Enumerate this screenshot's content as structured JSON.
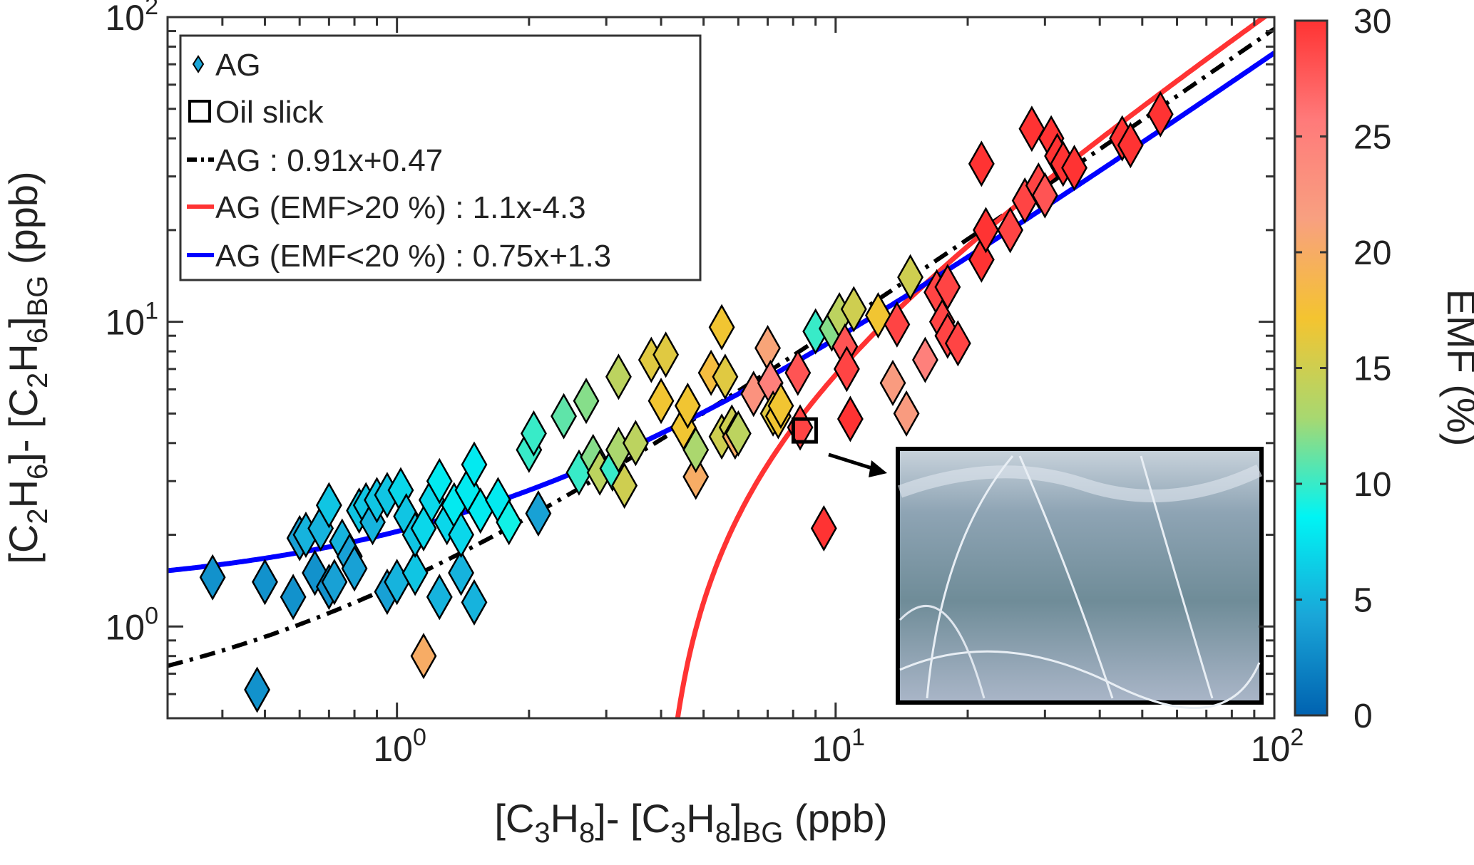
{
  "chart_data": {
    "type": "scatter",
    "xscale": "log",
    "yscale": "log",
    "xlim": [
      0.3,
      100
    ],
    "ylim": [
      0.5,
      100
    ],
    "grid": false,
    "xlabel_parts": [
      {
        "t": "[C"
      },
      {
        "t": "3",
        "s": "sub"
      },
      {
        "t": "H"
      },
      {
        "t": "8",
        "s": "sub"
      },
      {
        "t": "]- [C"
      },
      {
        "t": "3",
        "s": "sub"
      },
      {
        "t": "H"
      },
      {
        "t": "8",
        "s": "sub"
      },
      {
        "t": "]"
      },
      {
        "t": "BG",
        "s": "sub"
      },
      {
        "t": " (ppb)"
      }
    ],
    "ylabel_parts": [
      {
        "t": "[C"
      },
      {
        "t": "2",
        "s": "sub"
      },
      {
        "t": "H"
      },
      {
        "t": "6",
        "s": "sub"
      },
      {
        "t": "]- [C"
      },
      {
        "t": "2",
        "s": "sub"
      },
      {
        "t": "H"
      },
      {
        "t": "6",
        "s": "sub"
      },
      {
        "t": "]"
      },
      {
        "t": "BG",
        "s": "sub"
      },
      {
        "t": " (ppb)"
      }
    ],
    "xticks": [
      {
        "v": 1,
        "base": "10",
        "exp": "0"
      },
      {
        "v": 10,
        "base": "10",
        "exp": "1"
      },
      {
        "v": 100,
        "base": "10",
        "exp": "2"
      }
    ],
    "yticks": [
      {
        "v": 1,
        "base": "10",
        "exp": "0"
      },
      {
        "v": 10,
        "base": "10",
        "exp": "1"
      },
      {
        "v": 100,
        "base": "10",
        "exp": "2"
      }
    ],
    "legend": {
      "placement": "top-left",
      "entries": [
        {
          "label": "AG",
          "marker": "diamond"
        },
        {
          "label": "Oil slick",
          "marker": "square"
        },
        {
          "label": "AG : 0.91x+0.47",
          "line": "dash-dot",
          "color": "#000000"
        },
        {
          "label": "AG (EMF>20 %) : 1.1x-4.3",
          "line": "solid",
          "color": "#ff3333"
        },
        {
          "label": "AG (EMF<20 %) : 0.75x+1.3",
          "line": "solid",
          "color": "#0000ff"
        }
      ]
    },
    "fits": [
      {
        "name": "AG : 0.91x+0.47",
        "slope": 0.91,
        "intercept": 0.47,
        "color": "#000000",
        "style": "dash-dot"
      },
      {
        "name": "AG (EMF>20 %) : 1.1x-4.3",
        "slope": 1.1,
        "intercept": -4.3,
        "color": "#ff3333",
        "style": "solid"
      },
      {
        "name": "AG (EMF<20 %) : 0.75x+1.3",
        "slope": 0.75,
        "intercept": 1.3,
        "color": "#0000ff",
        "style": "solid"
      }
    ],
    "oil_slick": {
      "x": 8.5,
      "y": 4.4
    },
    "colorbar": {
      "label": "EMF (%)",
      "range": [
        0,
        30
      ],
      "ticks": [
        "0",
        "5",
        "10",
        "15",
        "20",
        "25",
        "30"
      ],
      "colors": [
        "#0062b0",
        "#1aa6d8",
        "#00f4f4",
        "#a8d870",
        "#f4c430",
        "#f8a080",
        "#ff7a7a",
        "#ff3333"
      ]
    },
    "inset": {
      "description_visible": false
    },
    "points": [
      [
        0.38,
        1.45,
        3
      ],
      [
        0.48,
        0.62,
        3
      ],
      [
        0.5,
        1.4,
        3
      ],
      [
        0.58,
        1.25,
        3
      ],
      [
        0.6,
        1.95,
        4
      ],
      [
        0.62,
        2.0,
        5
      ],
      [
        0.65,
        1.5,
        3
      ],
      [
        0.67,
        2.1,
        5
      ],
      [
        0.7,
        2.5,
        6
      ],
      [
        0.7,
        1.35,
        3
      ],
      [
        0.72,
        1.4,
        4
      ],
      [
        0.75,
        1.9,
        5
      ],
      [
        0.78,
        1.7,
        4
      ],
      [
        0.8,
        1.55,
        4
      ],
      [
        0.82,
        2.4,
        6
      ],
      [
        0.85,
        2.5,
        6
      ],
      [
        0.88,
        2.2,
        5
      ],
      [
        0.9,
        2.6,
        6
      ],
      [
        0.95,
        1.3,
        4
      ],
      [
        0.95,
        2.7,
        6
      ],
      [
        1.0,
        1.4,
        5
      ],
      [
        1.02,
        2.8,
        7
      ],
      [
        1.05,
        2.3,
        6
      ],
      [
        1.1,
        1.5,
        6
      ],
      [
        1.1,
        2.0,
        6
      ],
      [
        1.15,
        2.1,
        7
      ],
      [
        1.15,
        0.8,
        20
      ],
      [
        1.2,
        2.6,
        7
      ],
      [
        1.25,
        1.25,
        5
      ],
      [
        1.25,
        3.0,
        8
      ],
      [
        1.3,
        2.2,
        7
      ],
      [
        1.35,
        2.5,
        8
      ],
      [
        1.4,
        1.5,
        5
      ],
      [
        1.4,
        2.0,
        7
      ],
      [
        1.45,
        2.8,
        8
      ],
      [
        1.5,
        1.2,
        5
      ],
      [
        1.5,
        3.4,
        8
      ],
      [
        1.55,
        2.4,
        8
      ],
      [
        1.7,
        2.6,
        8
      ],
      [
        1.8,
        2.2,
        9
      ],
      [
        2.0,
        3.8,
        10
      ],
      [
        2.05,
        4.3,
        10
      ],
      [
        2.1,
        2.35,
        4
      ],
      [
        2.4,
        4.9,
        11
      ],
      [
        2.6,
        3.2,
        10
      ],
      [
        2.7,
        5.5,
        12
      ],
      [
        2.8,
        3.6,
        12
      ],
      [
        2.9,
        3.2,
        14
      ],
      [
        3.1,
        3.3,
        10
      ],
      [
        3.2,
        3.8,
        13
      ],
      [
        3.2,
        6.6,
        14
      ],
      [
        3.3,
        2.9,
        15
      ],
      [
        3.5,
        4.0,
        14
      ],
      [
        3.8,
        7.5,
        16
      ],
      [
        4.0,
        5.5,
        17
      ],
      [
        4.1,
        7.8,
        16
      ],
      [
        4.5,
        4.5,
        17
      ],
      [
        4.6,
        5.3,
        17
      ],
      [
        4.8,
        3.1,
        20
      ],
      [
        4.8,
        3.8,
        13
      ],
      [
        5.2,
        6.8,
        18
      ],
      [
        5.5,
        9.6,
        17
      ],
      [
        5.6,
        6.6,
        16
      ],
      [
        5.5,
        4.2,
        15
      ],
      [
        5.8,
        4.5,
        15
      ],
      [
        5.9,
        4.2,
        20
      ],
      [
        6.0,
        4.3,
        14
      ],
      [
        6.5,
        5.8,
        23
      ],
      [
        7.0,
        8.2,
        21
      ],
      [
        7.1,
        6.3,
        25
      ],
      [
        7.2,
        5.0,
        16
      ],
      [
        7.4,
        4.9,
        17
      ],
      [
        7.5,
        5.3,
        17
      ],
      [
        8.2,
        6.8,
        28
      ],
      [
        8.3,
        4.5,
        29
      ],
      [
        9.0,
        9.3,
        10
      ],
      [
        9.4,
        2.1,
        30
      ],
      [
        9.8,
        9.5,
        12
      ],
      [
        10.2,
        10.5,
        14
      ],
      [
        10.5,
        8.3,
        28
      ],
      [
        10.6,
        7.0,
        29
      ],
      [
        10.8,
        4.8,
        30
      ],
      [
        11.0,
        11.0,
        15
      ],
      [
        12.5,
        10.5,
        17
      ],
      [
        13.5,
        6.3,
        22
      ],
      [
        13.8,
        9.8,
        29
      ],
      [
        14.5,
        5.0,
        22
      ],
      [
        14.8,
        14,
        15
      ],
      [
        16,
        7.5,
        25
      ],
      [
        17,
        12.5,
        29
      ],
      [
        17.5,
        10,
        29
      ],
      [
        18,
        13,
        29
      ],
      [
        18,
        9,
        29
      ],
      [
        19,
        8.5,
        29
      ],
      [
        21.5,
        33,
        30
      ],
      [
        21.5,
        16,
        30
      ],
      [
        22,
        20,
        30
      ],
      [
        25,
        20,
        29
      ],
      [
        27,
        25,
        29
      ],
      [
        28,
        43,
        30
      ],
      [
        29,
        28,
        29
      ],
      [
        30,
        26,
        28
      ],
      [
        31,
        40,
        30
      ],
      [
        32,
        35,
        30
      ],
      [
        33,
        33,
        30
      ],
      [
        35,
        32,
        30
      ],
      [
        45,
        40,
        30
      ],
      [
        47,
        38,
        30
      ],
      [
        55,
        48,
        30
      ]
    ]
  }
}
